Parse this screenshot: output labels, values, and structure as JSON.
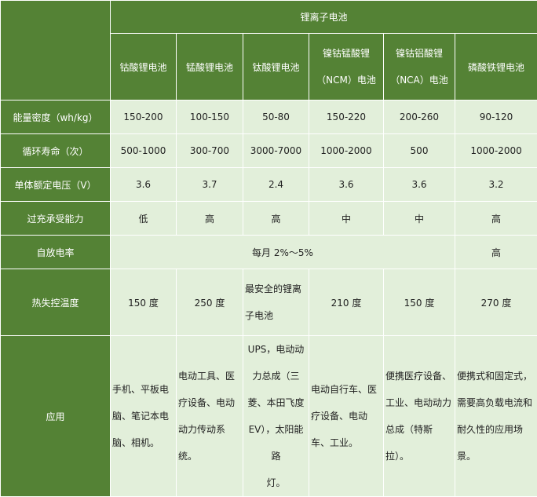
{
  "colors": {
    "header_bg": "#548235",
    "cell_bg": "#E2EFDA",
    "border": "#FFFFFF"
  },
  "header": {
    "group": "锂离子电池",
    "columns": [
      "钴酸锂电池",
      "锰酸锂电池",
      "钛酸锂电池",
      "镍钴锰酸锂\n（NCM）电池",
      "镍钴铝酸锂\n（NCA）电池",
      "磷酸铁锂电池"
    ]
  },
  "rows": [
    {
      "label": "能量密度（wh/kg）",
      "values": [
        "150-200",
        "100-150",
        "50-80",
        "150-220",
        "200-260",
        "90-120"
      ]
    },
    {
      "label": "循环寿命（次）",
      "values": [
        "500-1000",
        "300-700",
        "3000-7000",
        "1000-2000",
        "500",
        "1000-2000"
      ]
    },
    {
      "label": "单体额定电压（V）",
      "values": [
        "3.6",
        "3.7",
        "2.4",
        "3.6",
        "3.6",
        "3.2"
      ]
    },
    {
      "label": "过充承受能力",
      "values": [
        "低",
        "高",
        "高",
        "中",
        "中",
        "高"
      ]
    },
    {
      "label": "自放电率",
      "merged": "每月 2%～5%",
      "last": "高"
    },
    {
      "label": "热失控温度",
      "values": [
        "150 度",
        "250 度",
        "最安全的锂离\n子电池",
        "210 度",
        "150 度",
        "270 度"
      ]
    },
    {
      "label": "应用",
      "values": [
        "手机、平板电\n脑、笔记本电\n脑、相机。",
        "电动工具、医\n疗设备、电动\n动力传动系\n统。",
        "UPS，电动动\n力总成（三\n菱、本田飞度\nEV），太阳能路\n灯。",
        "电动自行车、医\n疗设备、电动\n车、工业。",
        "便携医疗设备、\n工业、电动动力\n总成（特斯拉）。",
        "便携式和固定式，\n需要高负载电流和\n耐久性的应用场\n景。"
      ]
    }
  ]
}
